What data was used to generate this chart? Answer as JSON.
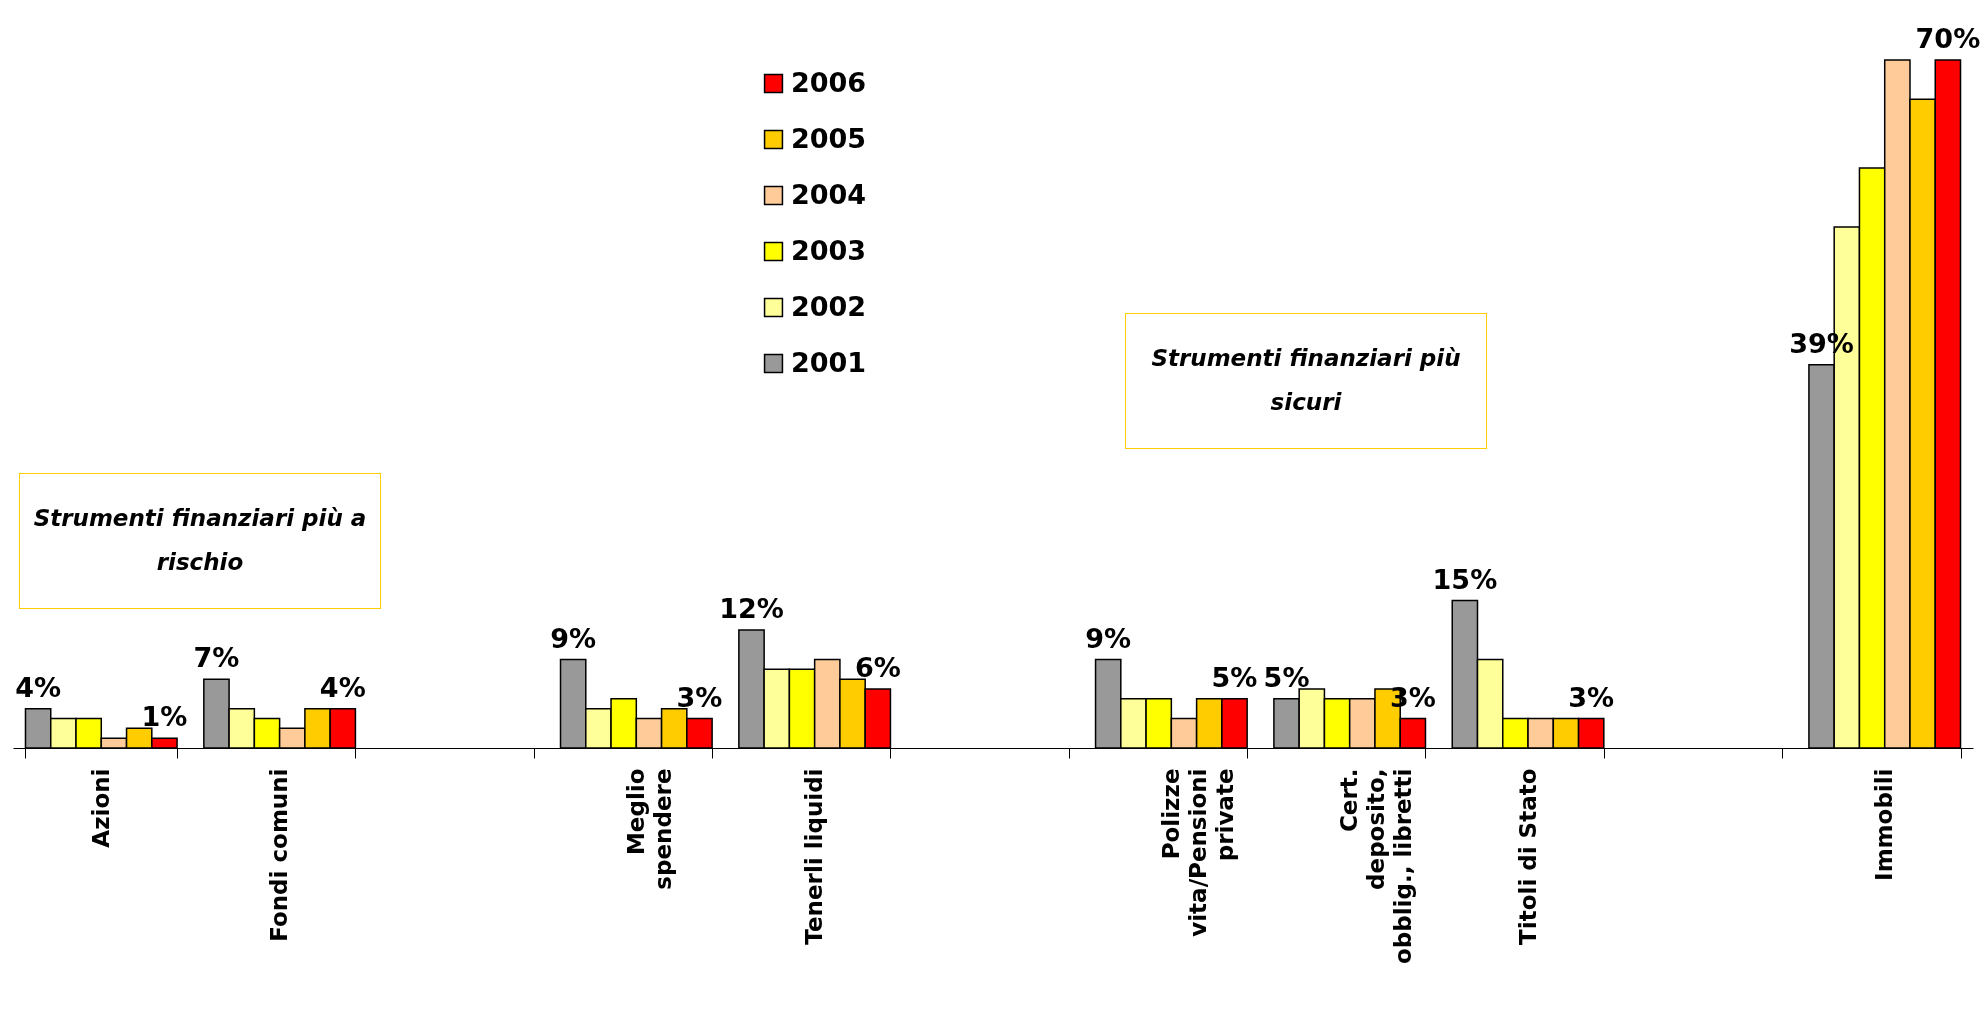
{
  "chart_data": {
    "type": "bar",
    "categories": [
      "Azioni",
      "Fondi comuni",
      null,
      "Meglio\nspendere",
      "Tenerli liquidi",
      null,
      "Polizze\nvita/Pensioni\nprivate",
      "Cert.\ndeposito,\nobblig., libretti",
      "Titoli di Stato",
      null,
      "Immobili"
    ],
    "series": [
      {
        "name": "2001",
        "color": "#999999",
        "values": [
          4,
          7,
          null,
          9,
          12,
          null,
          9,
          5,
          15,
          null,
          39
        ],
        "value_labels": [
          "4%",
          "7%",
          null,
          "9%",
          "12%",
          null,
          "9%",
          "5%",
          "15%",
          null,
          "39%"
        ]
      },
      {
        "name": "2002",
        "color": "#ffff99",
        "values": [
          3,
          4,
          null,
          4,
          8,
          null,
          5,
          6,
          9,
          null,
          53
        ]
      },
      {
        "name": "2003",
        "color": "#ffff00",
        "values": [
          3,
          3,
          null,
          5,
          8,
          null,
          5,
          5,
          3,
          null,
          59
        ]
      },
      {
        "name": "2004",
        "color": "#ffcc99",
        "values": [
          1,
          2,
          null,
          3,
          9,
          null,
          3,
          5,
          3,
          null,
          70
        ]
      },
      {
        "name": "2005",
        "color": "#ffcc00",
        "values": [
          2,
          4,
          null,
          4,
          7,
          null,
          5,
          6,
          3,
          null,
          66
        ]
      },
      {
        "name": "2006",
        "color": "#ff0000",
        "values": [
          1,
          4,
          null,
          3,
          6,
          null,
          5,
          3,
          3,
          null,
          70
        ],
        "value_labels": [
          "1%",
          "4%",
          null,
          "3%",
          "6%",
          null,
          "5%",
          "3%",
          "3%",
          null,
          "70%"
        ]
      }
    ],
    "annotations": [
      "Strumenti finanziari più a rischio",
      "Strumenti finanziari più sicuri"
    ],
    "legend": "top",
    "tick_labels": "x"
  }
}
